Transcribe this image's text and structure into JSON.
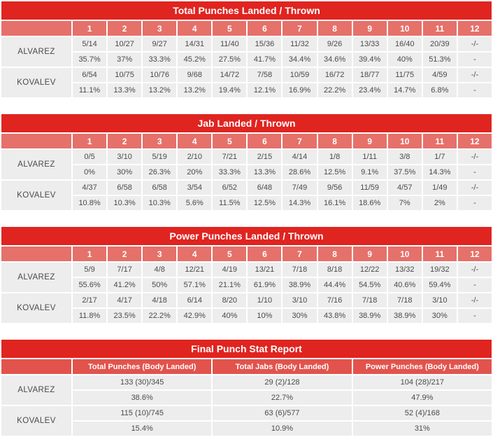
{
  "colors": {
    "title_bg": "#e02420",
    "round_header_bg": "#e5716a",
    "final_header_bg": "#e2534d",
    "row_bg": "#ededed",
    "header_text": "#ffffff",
    "data_text": "#4a4a4a"
  },
  "round_tables": [
    {
      "title": "Total Punches Landed / Thrown",
      "rounds": [
        "1",
        "2",
        "3",
        "4",
        "5",
        "6",
        "7",
        "8",
        "9",
        "10",
        "11",
        "12"
      ],
      "fighters": [
        {
          "name": "ALVAREZ",
          "values": [
            "5/14",
            "10/27",
            "9/27",
            "14/31",
            "11/40",
            "15/36",
            "11/32",
            "9/26",
            "13/33",
            "16/40",
            "20/39",
            "-/-"
          ],
          "pcts": [
            "35.7%",
            "37%",
            "33.3%",
            "45.2%",
            "27.5%",
            "41.7%",
            "34.4%",
            "34.6%",
            "39.4%",
            "40%",
            "51.3%",
            "-"
          ]
        },
        {
          "name": "KOVALEV",
          "values": [
            "6/54",
            "10/75",
            "10/76",
            "9/68",
            "14/72",
            "7/58",
            "10/59",
            "16/72",
            "18/77",
            "11/75",
            "4/59",
            "-/-"
          ],
          "pcts": [
            "11.1%",
            "13.3%",
            "13.2%",
            "13.2%",
            "19.4%",
            "12.1%",
            "16.9%",
            "22.2%",
            "23.4%",
            "14.7%",
            "6.8%",
            "-"
          ]
        }
      ]
    },
    {
      "title": "Jab Landed / Thrown",
      "rounds": [
        "1",
        "2",
        "3",
        "4",
        "5",
        "6",
        "7",
        "8",
        "9",
        "10",
        "11",
        "12"
      ],
      "fighters": [
        {
          "name": "ALVAREZ",
          "values": [
            "0/5",
            "3/10",
            "5/19",
            "2/10",
            "7/21",
            "2/15",
            "4/14",
            "1/8",
            "1/11",
            "3/8",
            "1/7",
            "-/-"
          ],
          "pcts": [
            "0%",
            "30%",
            "26.3%",
            "20%",
            "33.3%",
            "13.3%",
            "28.6%",
            "12.5%",
            "9.1%",
            "37.5%",
            "14.3%",
            "-"
          ]
        },
        {
          "name": "KOVALEV",
          "values": [
            "4/37",
            "6/58",
            "6/58",
            "3/54",
            "6/52",
            "6/48",
            "7/49",
            "9/56",
            "11/59",
            "4/57",
            "1/49",
            "-/-"
          ],
          "pcts": [
            "10.8%",
            "10.3%",
            "10.3%",
            "5.6%",
            "11.5%",
            "12.5%",
            "14.3%",
            "16.1%",
            "18.6%",
            "7%",
            "2%",
            "-"
          ]
        }
      ]
    },
    {
      "title": "Power Punches Landed / Thrown",
      "rounds": [
        "1",
        "2",
        "3",
        "4",
        "5",
        "6",
        "7",
        "8",
        "9",
        "10",
        "11",
        "12"
      ],
      "fighters": [
        {
          "name": "ALVAREZ",
          "values": [
            "5/9",
            "7/17",
            "4/8",
            "12/21",
            "4/19",
            "13/21",
            "7/18",
            "8/18",
            "12/22",
            "13/32",
            "19/32",
            "-/-"
          ],
          "pcts": [
            "55.6%",
            "41.2%",
            "50%",
            "57.1%",
            "21.1%",
            "61.9%",
            "38.9%",
            "44.4%",
            "54.5%",
            "40.6%",
            "59.4%",
            "-"
          ]
        },
        {
          "name": "KOVALEV",
          "values": [
            "2/17",
            "4/17",
            "4/18",
            "6/14",
            "8/20",
            "1/10",
            "3/10",
            "7/16",
            "7/18",
            "7/18",
            "3/10",
            "-/-"
          ],
          "pcts": [
            "11.8%",
            "23.5%",
            "22.2%",
            "42.9%",
            "40%",
            "10%",
            "30%",
            "43.8%",
            "38.9%",
            "38.9%",
            "30%",
            "-"
          ]
        }
      ]
    }
  ],
  "final_table": {
    "title": "Final Punch Stat Report",
    "columns": [
      "Total Punches (Body Landed)",
      "Total Jabs (Body Landed)",
      "Power Punches (Body Landed)"
    ],
    "fighters": [
      {
        "name": "ALVAREZ",
        "values": [
          "133 (30)/345",
          "29 (2)/128",
          "104 (28)/217"
        ],
        "pcts": [
          "38.6%",
          "22.7%",
          "47.9%"
        ]
      },
      {
        "name": "KOVALEV",
        "values": [
          "115 (10)/745",
          "63 (6)/577",
          "52 (4)/168"
        ],
        "pcts": [
          "15.4%",
          "10.9%",
          "31%"
        ]
      }
    ]
  }
}
